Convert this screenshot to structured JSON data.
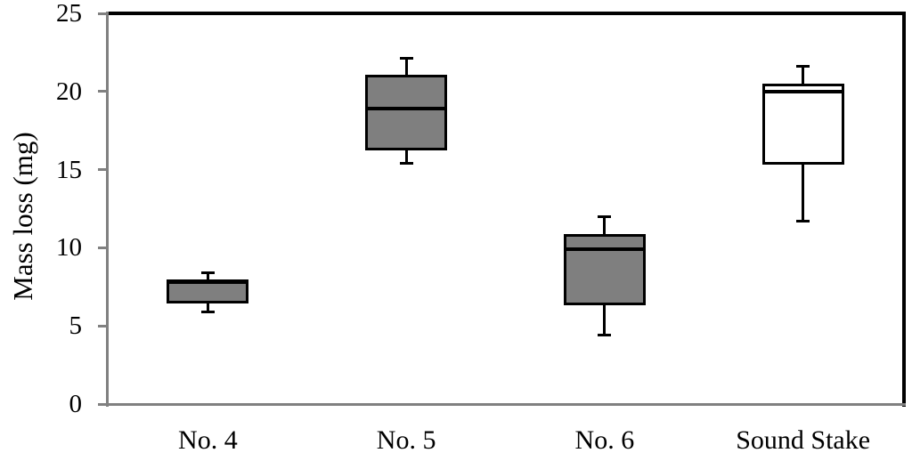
{
  "chart_data": {
    "type": "boxplot",
    "title": "",
    "xlabel": "",
    "ylabel": "Mass loss (mg)",
    "ylim": [
      0,
      25
    ],
    "yticks": [
      0,
      5,
      10,
      15,
      20,
      25
    ],
    "categories": [
      "No. 4",
      "No. 5",
      "No. 6",
      "Sound Stake"
    ],
    "series": [
      {
        "name": "No. 4",
        "whisker_low": 5.9,
        "q1": 6.5,
        "median": 7.8,
        "q3": 7.9,
        "whisker_high": 8.4,
        "fill": "#7f7f7f"
      },
      {
        "name": "No. 5",
        "whisker_low": 15.4,
        "q1": 16.3,
        "median": 18.9,
        "q3": 21.0,
        "whisker_high": 22.1,
        "fill": "#7f7f7f"
      },
      {
        "name": "No. 6",
        "whisker_low": 4.4,
        "q1": 6.4,
        "median": 9.9,
        "q3": 10.8,
        "whisker_high": 12.0,
        "fill": "#7f7f7f"
      },
      {
        "name": "Sound Stake",
        "whisker_low": 11.7,
        "q1": 15.4,
        "median": 20.0,
        "q3": 20.4,
        "whisker_high": 21.6,
        "fill": "#ffffff"
      }
    ],
    "grid": false,
    "legend": false,
    "colors": {
      "box_border": "#000000",
      "median": "#000000",
      "whisker": "#000000",
      "gray_fill": "#7f7f7f",
      "axis_line": "#808080",
      "plot_border_top_right": "#000000",
      "text": "#000000",
      "background": "#ffffff"
    }
  }
}
